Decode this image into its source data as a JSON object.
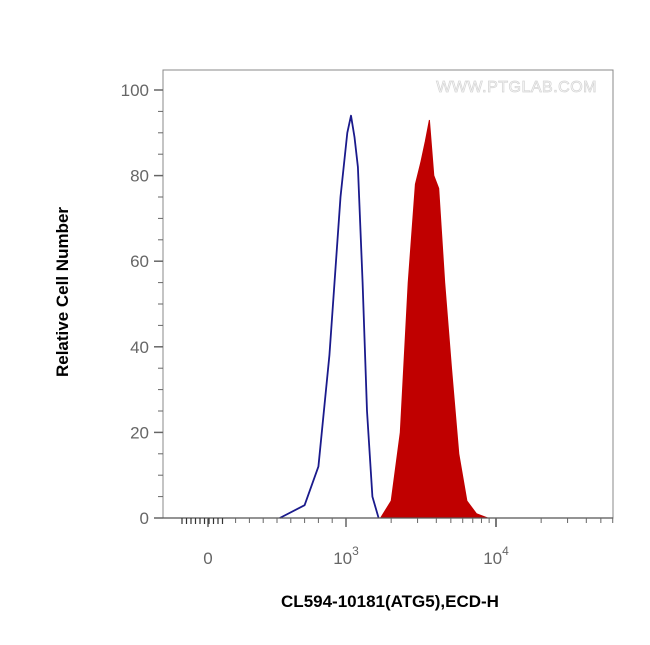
{
  "watermark": "WWW.PTGLAB.COM",
  "chart_data": {
    "type": "area",
    "xlabel": "CL594-10181(ATG5),ECD-H",
    "ylabel": "Relative Cell Number",
    "x_scale": "logicle",
    "x_ticks": [
      {
        "value": 0,
        "base": "0",
        "exp": ""
      },
      {
        "value": 1000,
        "base": "10",
        "exp": "3"
      },
      {
        "value": 10000,
        "base": "10",
        "exp": "4"
      }
    ],
    "y_ticks": [
      "0",
      "20",
      "40",
      "60",
      "80",
      "100"
    ],
    "ylim": [
      0,
      100
    ],
    "grid": false,
    "legend": "none",
    "series": [
      {
        "style": "outline",
        "color": "#1a1a8c",
        "points": [
          [
            520,
            0
          ],
          [
            700,
            3
          ],
          [
            800,
            12
          ],
          [
            880,
            38
          ],
          [
            960,
            75
          ],
          [
            1020,
            90
          ],
          [
            1080,
            94
          ],
          [
            1140,
            89
          ],
          [
            1200,
            82
          ],
          [
            1290,
            55
          ],
          [
            1380,
            25
          ],
          [
            1500,
            5
          ],
          [
            1650,
            0
          ]
        ]
      },
      {
        "style": "filled",
        "color": "#c00000",
        "points": [
          [
            1700,
            0
          ],
          [
            2000,
            4
          ],
          [
            2300,
            20
          ],
          [
            2600,
            55
          ],
          [
            2900,
            78
          ],
          [
            3150,
            83
          ],
          [
            3380,
            88
          ],
          [
            3600,
            93
          ],
          [
            3850,
            80
          ],
          [
            4150,
            77
          ],
          [
            4550,
            55
          ],
          [
            5050,
            35
          ],
          [
            5650,
            15
          ],
          [
            6400,
            4
          ],
          [
            7400,
            1
          ],
          [
            8800,
            0
          ]
        ]
      }
    ]
  }
}
